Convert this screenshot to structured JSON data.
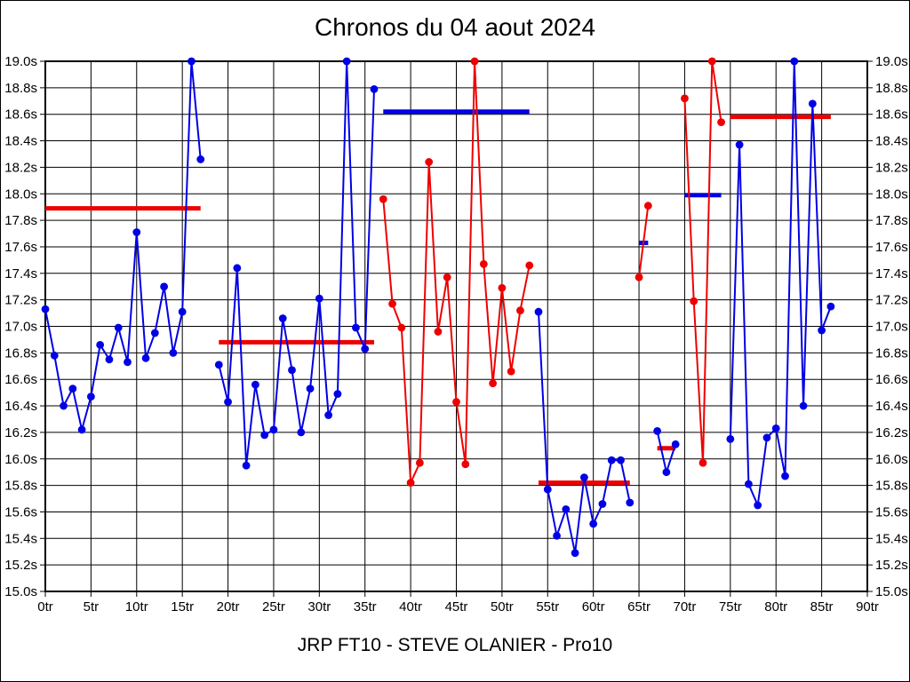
{
  "title": "Chronos du 04 aout 2024",
  "footer": "JRP FT10 - STEVE OLANIER - Pro10",
  "chart_data": {
    "type": "line",
    "title": "Chronos du 04 aout 2024",
    "subtitle": "JRP FT10 - STEVE OLANIER - Pro10",
    "x_unit": "tr",
    "y_unit": "s",
    "xlim": [
      0,
      90
    ],
    "ylim": [
      15.0,
      19.0
    ],
    "grid": true,
    "x_ticks": [
      "0tr",
      "5tr",
      "10tr",
      "15tr",
      "20tr",
      "25tr",
      "30tr",
      "35tr",
      "40tr",
      "45tr",
      "50tr",
      "55tr",
      "60tr",
      "65tr",
      "70tr",
      "75tr",
      "80tr",
      "85tr",
      "90tr"
    ],
    "y_ticks": [
      "15.0s",
      "15.2s",
      "15.4s",
      "15.6s",
      "15.8s",
      "16.0s",
      "16.2s",
      "16.4s",
      "16.6s",
      "16.8s",
      "17.0s",
      "17.2s",
      "17.4s",
      "17.6s",
      "17.8s",
      "18.0s",
      "18.2s",
      "18.4s",
      "18.6s",
      "18.8s",
      "19.0s"
    ],
    "colors": {
      "blue": "#0000e6",
      "red": "#ef0000",
      "grid": "#000000"
    },
    "stints": [
      {
        "color": "blue",
        "start_lap": 0,
        "values": [
          17.13,
          16.78,
          16.4,
          16.53,
          16.22,
          16.47,
          16.86,
          16.75,
          16.99,
          16.73,
          17.71,
          16.76,
          16.95,
          17.3,
          16.8,
          17.11,
          19.0,
          18.26
        ],
        "avg_line": {
          "color": "red",
          "value": 17.89,
          "lap_from": 0,
          "lap_to": 17
        }
      },
      {
        "color": "blue",
        "start_lap": 19,
        "values": [
          16.71,
          16.43,
          17.44,
          15.95,
          16.56,
          16.18,
          16.22,
          17.06,
          16.67,
          16.2,
          16.53,
          17.21,
          16.33,
          16.49,
          19.0,
          16.99,
          16.83,
          18.79
        ],
        "avg_line": {
          "color": "red",
          "value": 16.88,
          "lap_from": 19,
          "lap_to": 36
        }
      },
      {
        "color": "red",
        "start_lap": 37,
        "values": [
          17.96,
          17.17,
          16.99,
          15.82,
          15.97,
          18.24,
          16.96,
          17.37,
          16.43,
          15.96,
          19.0,
          17.47,
          16.57,
          17.29,
          16.66,
          17.12,
          17.46
        ],
        "avg_line": {
          "color": "blue",
          "value": 18.62,
          "lap_from": 37,
          "lap_to": 53
        }
      },
      {
        "color": "blue",
        "start_lap": 54,
        "values": [
          17.11,
          15.77,
          15.42,
          15.62,
          15.29,
          15.86,
          15.51,
          15.66,
          15.99,
          15.99,
          15.67
        ],
        "avg_line": {
          "color": "red",
          "value": 15.82,
          "lap_from": 54,
          "lap_to": 64
        }
      },
      {
        "color": "red",
        "start_lap": 65,
        "values": [
          17.37,
          17.91
        ],
        "avg_line": {
          "color": "blue",
          "value": 17.63,
          "lap_from": 65,
          "lap_to": 66
        }
      },
      {
        "color": "blue",
        "start_lap": 67,
        "values": [
          16.21,
          15.9,
          16.11
        ],
        "avg_line": {
          "color": "red",
          "value": 16.08,
          "lap_from": 67,
          "lap_to": 69
        }
      },
      {
        "color": "red",
        "start_lap": 70,
        "values": [
          18.72,
          17.19,
          15.97,
          19.0,
          18.54
        ],
        "avg_line": {
          "color": "blue",
          "value": 17.99,
          "lap_from": 70,
          "lap_to": 74
        }
      },
      {
        "color": "blue",
        "start_lap": 75,
        "values": [
          16.15,
          18.37,
          15.81,
          15.65,
          16.16,
          16.23,
          15.87,
          19.0,
          16.4,
          18.68,
          16.97,
          17.15
        ],
        "avg_line": {
          "color": "red",
          "value": 18.58,
          "lap_from": 75,
          "lap_to": 86
        }
      }
    ]
  }
}
